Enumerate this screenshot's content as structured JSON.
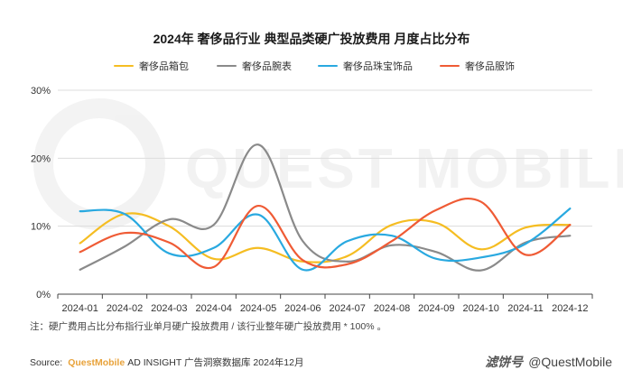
{
  "chart_data": {
    "type": "line",
    "title": "2024年 奢侈品行业 典型品类硬广投放费用 月度占比分布",
    "categories": [
      "2024-01",
      "2024-02",
      "2024-03",
      "2024-04",
      "2024-05",
      "2024-06",
      "2024-07",
      "2024-08",
      "2024-09",
      "2024-10",
      "2024-11",
      "2024-12"
    ],
    "ylim": [
      0,
      30
    ],
    "yticks": [
      "0%",
      "10%",
      "20%",
      "30%"
    ],
    "series": [
      {
        "name": "奢侈品箱包",
        "color": "#f5bd22",
        "values": [
          7.5,
          11.8,
          10.0,
          5.2,
          6.8,
          4.8,
          5.6,
          10.2,
          10.5,
          6.6,
          9.8,
          10.2
        ]
      },
      {
        "name": "奢侈品腕表",
        "color": "#8a8a8a",
        "values": [
          3.6,
          7.0,
          11.0,
          10.2,
          22.0,
          7.8,
          4.8,
          7.2,
          6.2,
          3.5,
          7.6,
          8.6
        ]
      },
      {
        "name": "奢侈品珠宝饰品",
        "color": "#29a9e0",
        "values": [
          12.2,
          11.8,
          6.0,
          6.8,
          11.7,
          3.6,
          7.8,
          8.6,
          5.2,
          5.4,
          7.4,
          12.6
        ]
      },
      {
        "name": "奢侈品服饰",
        "color": "#ef5b35",
        "values": [
          6.2,
          9.0,
          7.6,
          4.0,
          13.0,
          5.0,
          4.4,
          7.8,
          12.4,
          13.6,
          5.8,
          10.2
        ]
      }
    ],
    "grid": true,
    "legend": "top"
  },
  "note": "注：硬广费用占比分布指行业单月硬广投放费用 / 该行业整年硬广投放费用 * 100% 。",
  "source": {
    "label": "Source:",
    "brand": "QuestMobile",
    "rest": "AD INSIGHT 广告洞察数据库 2024年12月"
  },
  "watermark": "QUEST MOBILE",
  "footer": {
    "logo_text": "滤饼号",
    "handle": "@QuestMobile"
  }
}
